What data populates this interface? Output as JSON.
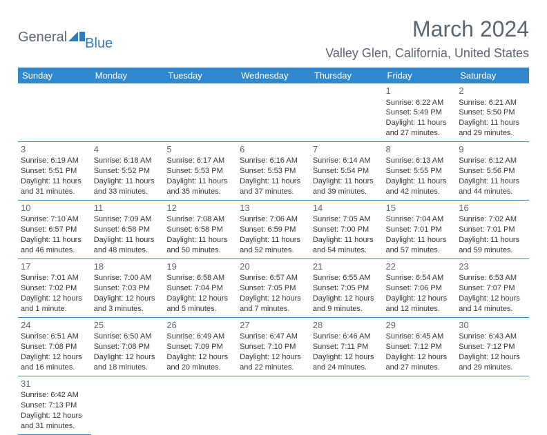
{
  "logo": {
    "text1": "General",
    "text2": "Blue"
  },
  "title": "March 2024",
  "location": "Valley Glen, California, United States",
  "colors": {
    "header_bg": "#3188cc",
    "header_text": "#ffffff",
    "border": "#3188cc",
    "text_muted": "#5a6770",
    "logo_blue": "#2d7cc0"
  },
  "weekdays": [
    "Sunday",
    "Monday",
    "Tuesday",
    "Wednesday",
    "Thursday",
    "Friday",
    "Saturday"
  ],
  "weeks": [
    [
      null,
      null,
      null,
      null,
      null,
      {
        "n": "1",
        "sr": "Sunrise: 6:22 AM",
        "ss": "Sunset: 5:49 PM",
        "d1": "Daylight: 11 hours",
        "d2": "and 27 minutes."
      },
      {
        "n": "2",
        "sr": "Sunrise: 6:21 AM",
        "ss": "Sunset: 5:50 PM",
        "d1": "Daylight: 11 hours",
        "d2": "and 29 minutes."
      }
    ],
    [
      {
        "n": "3",
        "sr": "Sunrise: 6:19 AM",
        "ss": "Sunset: 5:51 PM",
        "d1": "Daylight: 11 hours",
        "d2": "and 31 minutes."
      },
      {
        "n": "4",
        "sr": "Sunrise: 6:18 AM",
        "ss": "Sunset: 5:52 PM",
        "d1": "Daylight: 11 hours",
        "d2": "and 33 minutes."
      },
      {
        "n": "5",
        "sr": "Sunrise: 6:17 AM",
        "ss": "Sunset: 5:53 PM",
        "d1": "Daylight: 11 hours",
        "d2": "and 35 minutes."
      },
      {
        "n": "6",
        "sr": "Sunrise: 6:16 AM",
        "ss": "Sunset: 5:53 PM",
        "d1": "Daylight: 11 hours",
        "d2": "and 37 minutes."
      },
      {
        "n": "7",
        "sr": "Sunrise: 6:14 AM",
        "ss": "Sunset: 5:54 PM",
        "d1": "Daylight: 11 hours",
        "d2": "and 39 minutes."
      },
      {
        "n": "8",
        "sr": "Sunrise: 6:13 AM",
        "ss": "Sunset: 5:55 PM",
        "d1": "Daylight: 11 hours",
        "d2": "and 42 minutes."
      },
      {
        "n": "9",
        "sr": "Sunrise: 6:12 AM",
        "ss": "Sunset: 5:56 PM",
        "d1": "Daylight: 11 hours",
        "d2": "and 44 minutes."
      }
    ],
    [
      {
        "n": "10",
        "sr": "Sunrise: 7:10 AM",
        "ss": "Sunset: 6:57 PM",
        "d1": "Daylight: 11 hours",
        "d2": "and 46 minutes."
      },
      {
        "n": "11",
        "sr": "Sunrise: 7:09 AM",
        "ss": "Sunset: 6:58 PM",
        "d1": "Daylight: 11 hours",
        "d2": "and 48 minutes."
      },
      {
        "n": "12",
        "sr": "Sunrise: 7:08 AM",
        "ss": "Sunset: 6:58 PM",
        "d1": "Daylight: 11 hours",
        "d2": "and 50 minutes."
      },
      {
        "n": "13",
        "sr": "Sunrise: 7:06 AM",
        "ss": "Sunset: 6:59 PM",
        "d1": "Daylight: 11 hours",
        "d2": "and 52 minutes."
      },
      {
        "n": "14",
        "sr": "Sunrise: 7:05 AM",
        "ss": "Sunset: 7:00 PM",
        "d1": "Daylight: 11 hours",
        "d2": "and 54 minutes."
      },
      {
        "n": "15",
        "sr": "Sunrise: 7:04 AM",
        "ss": "Sunset: 7:01 PM",
        "d1": "Daylight: 11 hours",
        "d2": "and 57 minutes."
      },
      {
        "n": "16",
        "sr": "Sunrise: 7:02 AM",
        "ss": "Sunset: 7:01 PM",
        "d1": "Daylight: 11 hours",
        "d2": "and 59 minutes."
      }
    ],
    [
      {
        "n": "17",
        "sr": "Sunrise: 7:01 AM",
        "ss": "Sunset: 7:02 PM",
        "d1": "Daylight: 12 hours",
        "d2": "and 1 minute."
      },
      {
        "n": "18",
        "sr": "Sunrise: 7:00 AM",
        "ss": "Sunset: 7:03 PM",
        "d1": "Daylight: 12 hours",
        "d2": "and 3 minutes."
      },
      {
        "n": "19",
        "sr": "Sunrise: 6:58 AM",
        "ss": "Sunset: 7:04 PM",
        "d1": "Daylight: 12 hours",
        "d2": "and 5 minutes."
      },
      {
        "n": "20",
        "sr": "Sunrise: 6:57 AM",
        "ss": "Sunset: 7:05 PM",
        "d1": "Daylight: 12 hours",
        "d2": "and 7 minutes."
      },
      {
        "n": "21",
        "sr": "Sunrise: 6:55 AM",
        "ss": "Sunset: 7:05 PM",
        "d1": "Daylight: 12 hours",
        "d2": "and 9 minutes."
      },
      {
        "n": "22",
        "sr": "Sunrise: 6:54 AM",
        "ss": "Sunset: 7:06 PM",
        "d1": "Daylight: 12 hours",
        "d2": "and 12 minutes."
      },
      {
        "n": "23",
        "sr": "Sunrise: 6:53 AM",
        "ss": "Sunset: 7:07 PM",
        "d1": "Daylight: 12 hours",
        "d2": "and 14 minutes."
      }
    ],
    [
      {
        "n": "24",
        "sr": "Sunrise: 6:51 AM",
        "ss": "Sunset: 7:08 PM",
        "d1": "Daylight: 12 hours",
        "d2": "and 16 minutes."
      },
      {
        "n": "25",
        "sr": "Sunrise: 6:50 AM",
        "ss": "Sunset: 7:08 PM",
        "d1": "Daylight: 12 hours",
        "d2": "and 18 minutes."
      },
      {
        "n": "26",
        "sr": "Sunrise: 6:49 AM",
        "ss": "Sunset: 7:09 PM",
        "d1": "Daylight: 12 hours",
        "d2": "and 20 minutes."
      },
      {
        "n": "27",
        "sr": "Sunrise: 6:47 AM",
        "ss": "Sunset: 7:10 PM",
        "d1": "Daylight: 12 hours",
        "d2": "and 22 minutes."
      },
      {
        "n": "28",
        "sr": "Sunrise: 6:46 AM",
        "ss": "Sunset: 7:11 PM",
        "d1": "Daylight: 12 hours",
        "d2": "and 24 minutes."
      },
      {
        "n": "29",
        "sr": "Sunrise: 6:45 AM",
        "ss": "Sunset: 7:12 PM",
        "d1": "Daylight: 12 hours",
        "d2": "and 27 minutes."
      },
      {
        "n": "30",
        "sr": "Sunrise: 6:43 AM",
        "ss": "Sunset: 7:12 PM",
        "d1": "Daylight: 12 hours",
        "d2": "and 29 minutes."
      }
    ],
    [
      {
        "n": "31",
        "sr": "Sunrise: 6:42 AM",
        "ss": "Sunset: 7:13 PM",
        "d1": "Daylight: 12 hours",
        "d2": "and 31 minutes."
      },
      null,
      null,
      null,
      null,
      null,
      null
    ]
  ]
}
